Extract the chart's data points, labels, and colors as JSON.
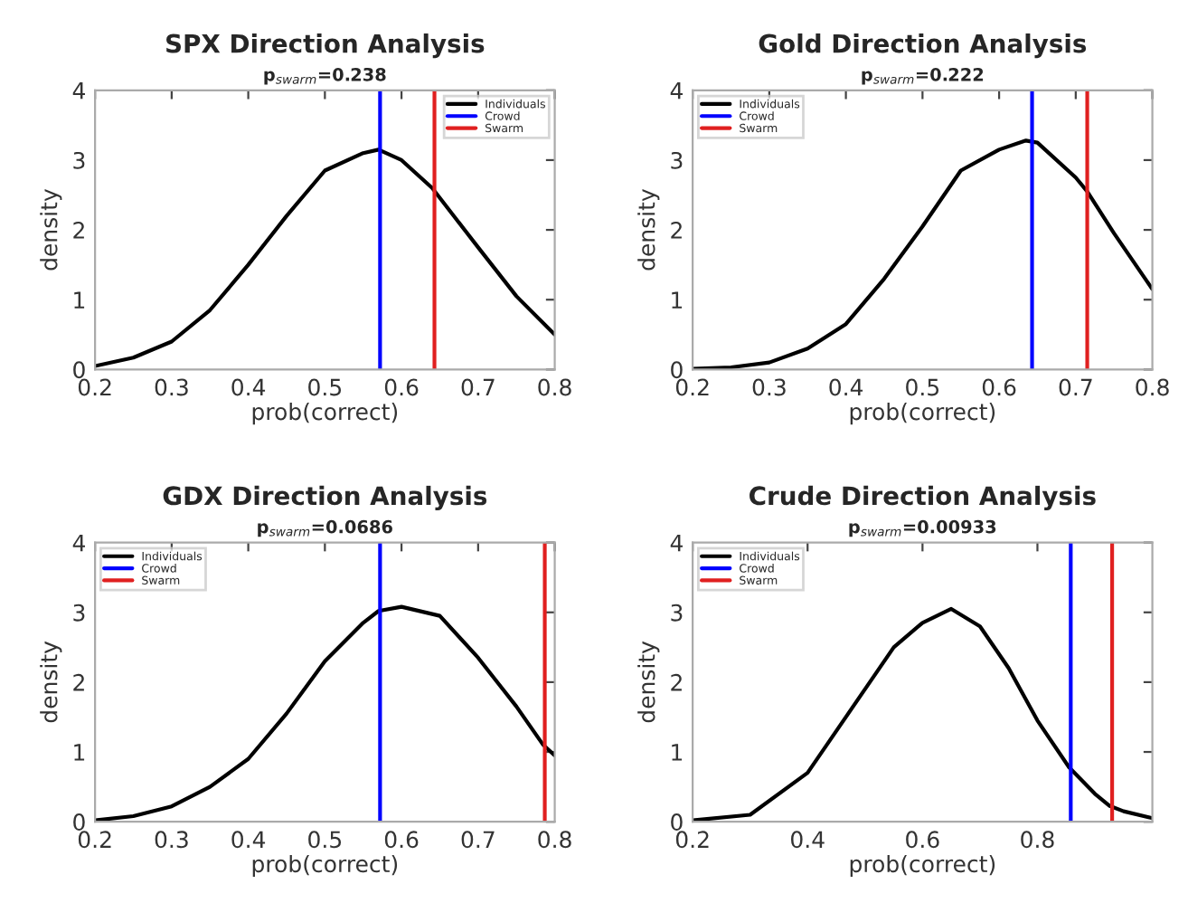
{
  "chart_data": [
    {
      "type": "line",
      "title": "SPX Direction Analysis",
      "subtitle": "p$_{swarm}$=0.238",
      "xlabel": "prob(correct)",
      "ylabel": "density",
      "xlim": [
        0.2,
        0.8
      ],
      "xticks": [
        0.2,
        0.3,
        0.4,
        0.5,
        0.6,
        0.7,
        0.8
      ],
      "ylim": [
        0,
        4
      ],
      "yticks": [
        0,
        1,
        2,
        3,
        4
      ],
      "legend": "top right",
      "grid": false,
      "series": [
        {
          "name": "Individuals",
          "color": "#000000",
          "x": [
            0.2,
            0.25,
            0.3,
            0.35,
            0.4,
            0.45,
            0.5,
            0.55,
            0.57,
            0.6,
            0.64,
            0.7,
            0.75,
            0.8
          ],
          "values": [
            0.05,
            0.17,
            0.4,
            0.85,
            1.5,
            2.2,
            2.85,
            3.1,
            3.15,
            3.0,
            2.6,
            1.75,
            1.05,
            0.5
          ]
        },
        {
          "name": "Crowd",
          "color": "#0000ff",
          "x": [
            0.572,
            0.572
          ],
          "values": [
            0,
            4
          ]
        },
        {
          "name": "Swarm",
          "color": "#e02020",
          "x": [
            0.643,
            0.643
          ],
          "values": [
            0,
            4
          ]
        }
      ]
    },
    {
      "type": "line",
      "title": "Gold Direction Analysis",
      "subtitle": "p$_{swarm}$=0.222",
      "xlabel": "prob(correct)",
      "ylabel": "density",
      "xlim": [
        0.2,
        0.8
      ],
      "xticks": [
        0.2,
        0.3,
        0.4,
        0.5,
        0.6,
        0.7,
        0.8
      ],
      "ylim": [
        0,
        4
      ],
      "yticks": [
        0,
        1,
        2,
        3,
        4
      ],
      "legend": "top left",
      "grid": false,
      "series": [
        {
          "name": "Individuals",
          "color": "#000000",
          "x": [
            0.2,
            0.25,
            0.3,
            0.35,
            0.4,
            0.45,
            0.5,
            0.55,
            0.6,
            0.635,
            0.65,
            0.7,
            0.715,
            0.75,
            0.8
          ],
          "values": [
            0.01,
            0.03,
            0.1,
            0.3,
            0.65,
            1.3,
            2.05,
            2.85,
            3.15,
            3.28,
            3.25,
            2.75,
            2.55,
            1.95,
            1.15
          ]
        },
        {
          "name": "Crowd",
          "color": "#0000ff",
          "x": [
            0.643,
            0.643
          ],
          "values": [
            0,
            4
          ]
        },
        {
          "name": "Swarm",
          "color": "#e02020",
          "x": [
            0.715,
            0.715
          ],
          "values": [
            0,
            4
          ]
        }
      ]
    },
    {
      "type": "line",
      "title": "GDX Direction Analysis",
      "subtitle": "p$_{swarm}$=0.0686",
      "xlabel": "prob(correct)",
      "ylabel": "density",
      "xlim": [
        0.2,
        0.8
      ],
      "xticks": [
        0.2,
        0.3,
        0.4,
        0.5,
        0.6,
        0.7,
        0.8
      ],
      "ylim": [
        0,
        4
      ],
      "yticks": [
        0,
        1,
        2,
        3,
        4
      ],
      "legend": "top left",
      "grid": false,
      "series": [
        {
          "name": "Individuals",
          "color": "#000000",
          "x": [
            0.2,
            0.25,
            0.3,
            0.35,
            0.4,
            0.45,
            0.5,
            0.55,
            0.57,
            0.6,
            0.65,
            0.7,
            0.75,
            0.785,
            0.8
          ],
          "values": [
            0.02,
            0.08,
            0.22,
            0.5,
            0.9,
            1.55,
            2.3,
            2.85,
            3.02,
            3.08,
            2.95,
            2.35,
            1.65,
            1.1,
            0.95
          ]
        },
        {
          "name": "Crowd",
          "color": "#0000ff",
          "x": [
            0.572,
            0.572
          ],
          "values": [
            0,
            4
          ]
        },
        {
          "name": "Swarm",
          "color": "#e02020",
          "x": [
            0.787,
            0.787
          ],
          "values": [
            0,
            4
          ]
        }
      ]
    },
    {
      "type": "line",
      "title": "Crude Direction Analysis",
      "subtitle": "p$_{swarm}$=0.00933",
      "xlabel": "prob(correct)",
      "ylabel": "density",
      "xlim": [
        0.2,
        1.0
      ],
      "xticks": [
        0.2,
        0.4,
        0.6,
        0.8
      ],
      "ylim": [
        0,
        4
      ],
      "yticks": [
        0,
        1,
        2,
        3,
        4
      ],
      "legend": "top left",
      "grid": false,
      "series": [
        {
          "name": "Individuals",
          "color": "#000000",
          "x": [
            0.2,
            0.3,
            0.4,
            0.45,
            0.5,
            0.55,
            0.6,
            0.65,
            0.7,
            0.75,
            0.8,
            0.855,
            0.9,
            0.925,
            0.95,
            1.0
          ],
          "values": [
            0.02,
            0.1,
            0.7,
            1.3,
            1.9,
            2.5,
            2.85,
            3.05,
            2.8,
            2.2,
            1.45,
            0.78,
            0.4,
            0.23,
            0.15,
            0.05
          ]
        },
        {
          "name": "Crowd",
          "color": "#0000ff",
          "x": [
            0.858,
            0.858
          ],
          "values": [
            0,
            4
          ]
        },
        {
          "name": "Swarm",
          "color": "#e02020",
          "x": [
            0.93,
            0.93
          ],
          "values": [
            0,
            4
          ]
        }
      ]
    }
  ]
}
